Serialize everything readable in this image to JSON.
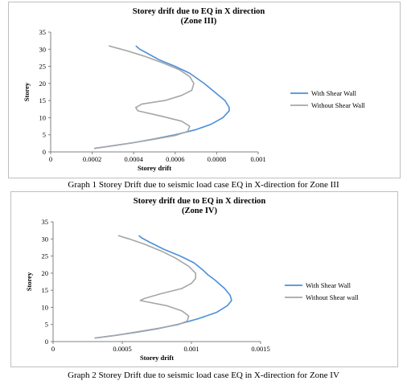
{
  "charts_meta": {
    "colors": {
      "with": "#4a90d9",
      "without": "#a6a6a6"
    }
  },
  "captions": [
    "Graph 1 Storey Drift due to seismic load case EQ in X-direction for Zone III",
    "Graph 2 Storey Drift due to seismic load case EQ in X-direction for Zone IV"
  ],
  "chart_data": [
    {
      "type": "line",
      "title": "Storey drift due to EQ in X direction",
      "subtitle": "(Zone III)",
      "xlabel": "Storey drift",
      "ylabel": "Storey",
      "xlim": [
        0,
        0.001
      ],
      "ylim": [
        0,
        35
      ],
      "xticks": [
        "0",
        "0.0002",
        "0.0004",
        "0.0006",
        "0.0008",
        "0.001"
      ],
      "yticks": [
        "0",
        "5",
        "10",
        "15",
        "20",
        "25",
        "30",
        "35"
      ],
      "legend_position": "right",
      "series": [
        {
          "name": "With Shear Wall",
          "color": "#4a90d9",
          "points": [
            [
              0.00021,
              1
            ],
            [
              0.0003,
              1.8
            ],
            [
              0.0004,
              2.7
            ],
            [
              0.0005,
              3.8
            ],
            [
              0.0006,
              5
            ],
            [
              0.0007,
              6.5
            ],
            [
              0.00077,
              8
            ],
            [
              0.00083,
              10
            ],
            [
              0.00086,
              12
            ],
            [
              0.00086,
              13
            ],
            [
              0.00084,
              15
            ],
            [
              0.0008,
              17
            ],
            [
              0.00074,
              20
            ],
            [
              0.00067,
              23
            ],
            [
              0.0006,
              25
            ],
            [
              0.00052,
              27
            ],
            [
              0.00046,
              29
            ],
            [
              0.00043,
              30
            ],
            [
              0.00041,
              31
            ]
          ]
        },
        {
          "name": "Without Shear Wall",
          "color": "#a6a6a6",
          "points": [
            [
              0.00021,
              1
            ],
            [
              0.0003,
              1.8
            ],
            [
              0.0004,
              2.7
            ],
            [
              0.0005,
              3.7
            ],
            [
              0.0006,
              4.8
            ],
            [
              0.00066,
              6
            ],
            [
              0.00067,
              7.5
            ],
            [
              0.00063,
              9
            ],
            [
              0.00053,
              10.5
            ],
            [
              0.00042,
              12
            ],
            [
              0.00041,
              13
            ],
            [
              0.00044,
              14
            ],
            [
              0.00055,
              15
            ],
            [
              0.00063,
              16.5
            ],
            [
              0.00068,
              18
            ],
            [
              0.00069,
              20
            ],
            [
              0.00067,
              22
            ],
            [
              0.00062,
              24
            ],
            [
              0.00054,
              26
            ],
            [
              0.00045,
              28
            ],
            [
              0.00037,
              29.5
            ],
            [
              0.00031,
              30.5
            ],
            [
              0.00028,
              31
            ]
          ]
        }
      ]
    },
    {
      "type": "line",
      "title": "Storey drift due to EQ in X direction",
      "subtitle": "(Zone IV)",
      "xlabel": "Storey drift",
      "ylabel": "Storey",
      "xlim": [
        0,
        0.0015
      ],
      "ylim": [
        0,
        35
      ],
      "xticks": [
        "0",
        "0.0005",
        "0.001",
        "0.0015"
      ],
      "yticks": [
        "0",
        "5",
        "10",
        "15",
        "20",
        "25",
        "30",
        "35"
      ],
      "legend_position": "right",
      "series": [
        {
          "name": "With Shear Wall",
          "color": "#4a90d9",
          "points": [
            [
              0.0003,
              1
            ],
            [
              0.00045,
              1.8
            ],
            [
              0.0006,
              2.7
            ],
            [
              0.00075,
              3.7
            ],
            [
              0.0009,
              5
            ],
            [
              0.00105,
              6.7
            ],
            [
              0.00118,
              8.5
            ],
            [
              0.00126,
              10.5
            ],
            [
              0.00129,
              12
            ],
            [
              0.00128,
              13.5
            ],
            [
              0.00124,
              15.5
            ],
            [
              0.00117,
              18
            ],
            [
              0.00112,
              19.5
            ],
            [
              0.00108,
              21
            ],
            [
              0.00102,
              23
            ],
            [
              0.00092,
              25
            ],
            [
              0.0008,
              27
            ],
            [
              0.0007,
              29
            ],
            [
              0.00064,
              30.3
            ],
            [
              0.00062,
              31
            ]
          ]
        },
        {
          "name": "Without Shear wall",
          "color": "#a6a6a6",
          "points": [
            [
              0.0003,
              1
            ],
            [
              0.00045,
              1.8
            ],
            [
              0.0006,
              2.8
            ],
            [
              0.00075,
              3.8
            ],
            [
              0.0009,
              4.9
            ],
            [
              0.00097,
              6
            ],
            [
              0.00098,
              7.5
            ],
            [
              0.00093,
              9
            ],
            [
              0.00082,
              10.5
            ],
            [
              0.00068,
              11.6
            ],
            [
              0.00063,
              12
            ],
            [
              0.00066,
              12.6
            ],
            [
              0.00078,
              14
            ],
            [
              0.00093,
              15.5
            ],
            [
              0.001,
              17
            ],
            [
              0.00103,
              18.5
            ],
            [
              0.00103,
              20
            ],
            [
              0.00098,
              22
            ],
            [
              0.00088,
              24.5
            ],
            [
              0.00078,
              26.5
            ],
            [
              0.00066,
              28.5
            ],
            [
              0.00055,
              30
            ],
            [
              0.0005,
              30.6
            ],
            [
              0.00047,
              31
            ]
          ]
        }
      ]
    }
  ]
}
